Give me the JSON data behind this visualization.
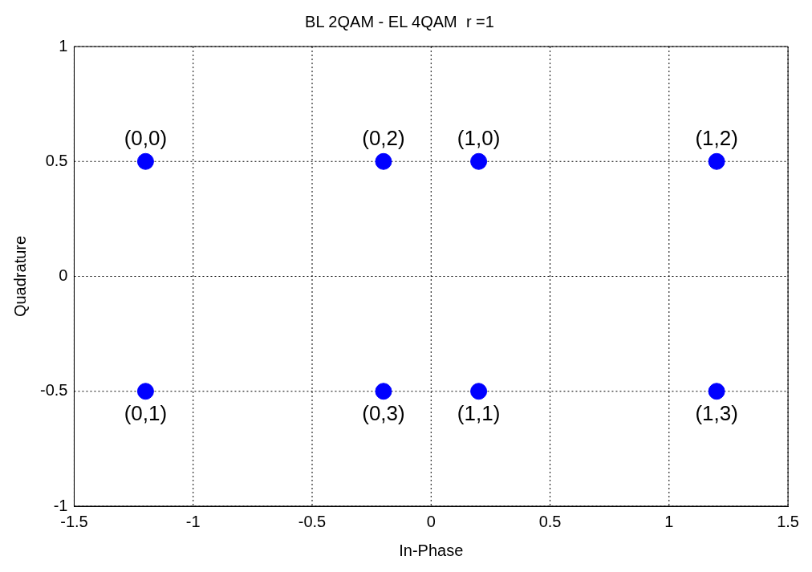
{
  "chart_data": {
    "type": "scatter",
    "title": "BL 2QAM - EL 4QAM  r =1",
    "xlabel": "In-Phase",
    "ylabel": "Quadrature",
    "x": [
      -1.2,
      -1.2,
      -0.2,
      -0.2,
      0.2,
      0.2,
      1.2,
      1.2
    ],
    "series": [
      {
        "color": "#0000ff",
        "values": [
          0.5,
          -0.5,
          0.5,
          -0.5,
          0.5,
          -0.5,
          0.5,
          -0.5
        ]
      }
    ],
    "xlim": [
      -1.5,
      1.5
    ],
    "xticks": [
      -1.5,
      -1,
      -0.5,
      0,
      0.5,
      1,
      1.5
    ],
    "ylim": [
      -1,
      1
    ],
    "yticks": [
      -1,
      -0.5,
      0,
      0.5,
      1
    ],
    "annotations": [
      {
        "text": "(0,0)",
        "x": -1.2,
        "y": 0.5
      },
      {
        "text": "(0,1)",
        "x": -1.2,
        "y": -0.5
      },
      {
        "text": "(0,2)",
        "x": -0.2,
        "y": 0.5
      },
      {
        "text": "(0,3)",
        "x": -0.2,
        "y": -0.5
      },
      {
        "text": "(1,0)",
        "x": 0.2,
        "y": 0.5
      },
      {
        "text": "(1,1)",
        "x": 0.2,
        "y": -0.5
      },
      {
        "text": "(1,2)",
        "x": 1.2,
        "y": 0.5
      },
      {
        "text": "(1,3)",
        "x": 1.2,
        "y": -0.5
      }
    ],
    "grid": true,
    "legend": false,
    "marker": "circle"
  }
}
